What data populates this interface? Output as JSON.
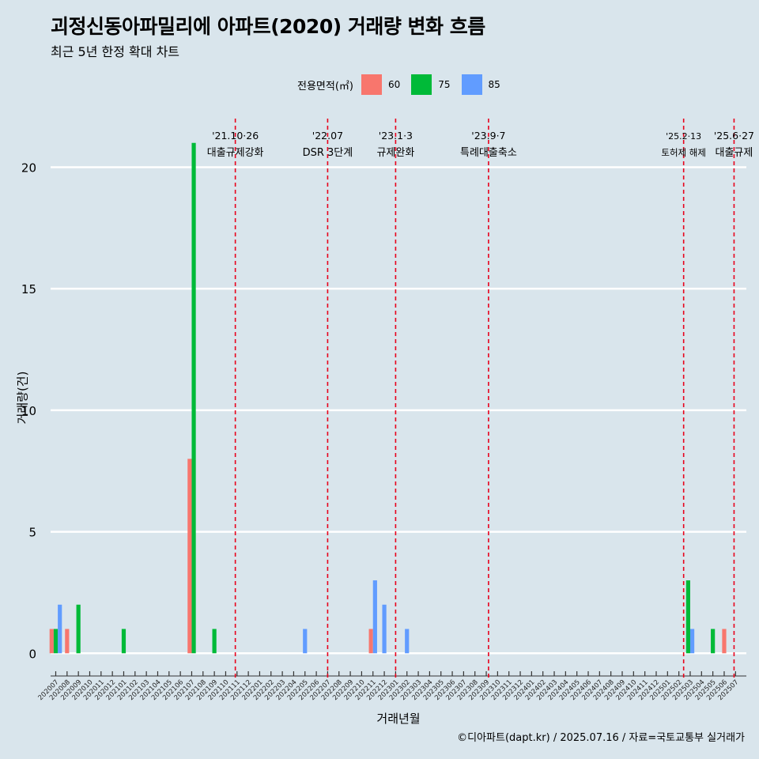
{
  "chart_data": {
    "type": "bar",
    "title": "괴정신동아파밀리에 아파트(2020) 거래량 변화 흐름",
    "subtitle": "최근 5년 한정 확대 차트",
    "xlabel": "거래년월",
    "ylabel": "거래량(건)",
    "caption": "©디아파트(dapt.kr) / 2025.07.16 / 자료=국토교통부 실거래가",
    "legend_title": "전용면적(㎡)",
    "legend_position": "top",
    "ylim": [
      -1,
      22
    ],
    "yticks": [
      0,
      5,
      10,
      15,
      20
    ],
    "grid": true,
    "categories": [
      "202007",
      "202008",
      "202009",
      "202010",
      "202011",
      "202012",
      "202101",
      "202102",
      "202103",
      "202104",
      "202105",
      "202106",
      "202107",
      "202108",
      "202109",
      "202110",
      "202111",
      "202112",
      "202201",
      "202202",
      "202203",
      "202204",
      "202205",
      "202206",
      "202207",
      "202208",
      "202209",
      "202210",
      "202211",
      "202212",
      "202301",
      "202302",
      "202303",
      "202304",
      "202305",
      "202306",
      "202307",
      "202308",
      "202309",
      "202310",
      "202311",
      "202312",
      "202401",
      "202402",
      "202403",
      "202404",
      "202405",
      "202406",
      "202407",
      "202408",
      "202409",
      "202410",
      "202411",
      "202412",
      "202501",
      "202502",
      "202503",
      "202504",
      "202505",
      "202506",
      "202507"
    ],
    "series": [
      {
        "name": "60",
        "color": "#F8766D",
        "values": [
          1,
          1,
          0,
          0,
          0,
          0,
          0,
          0,
          0,
          0,
          0,
          0,
          8,
          0,
          0,
          0,
          0,
          0,
          0,
          0,
          0,
          0,
          0,
          0,
          0,
          0,
          0,
          0,
          1,
          0,
          0,
          0,
          0,
          0,
          0,
          0,
          0,
          0,
          0,
          0,
          0,
          0,
          0,
          0,
          0,
          0,
          0,
          0,
          0,
          0,
          0,
          0,
          0,
          0,
          0,
          0,
          0,
          0,
          0,
          1,
          0
        ]
      },
      {
        "name": "75",
        "color": "#00BA38",
        "values": [
          1,
          0,
          2,
          0,
          0,
          0,
          1,
          0,
          0,
          0,
          0,
          0,
          21,
          0,
          1,
          0,
          0,
          0,
          0,
          0,
          0,
          0,
          0,
          0,
          0,
          0,
          0,
          0,
          0,
          0,
          0,
          0,
          0,
          0,
          0,
          0,
          0,
          0,
          0,
          0,
          0,
          0,
          0,
          0,
          0,
          0,
          0,
          0,
          0,
          0,
          0,
          0,
          0,
          0,
          0,
          0,
          3,
          0,
          1,
          0,
          0
        ]
      },
      {
        "name": "85",
        "color": "#619CFF",
        "values": [
          2,
          0,
          0,
          0,
          0,
          0,
          0,
          0,
          0,
          0,
          0,
          0,
          0,
          0,
          0,
          0,
          0,
          0,
          0,
          0,
          0,
          0,
          1,
          0,
          0,
          0,
          0,
          0,
          3,
          2,
          0,
          1,
          0,
          0,
          0,
          0,
          0,
          0,
          0,
          0,
          0,
          0,
          0,
          0,
          0,
          0,
          0,
          0,
          0,
          0,
          0,
          0,
          0,
          0,
          0,
          0,
          1,
          0,
          0,
          0,
          0
        ]
      }
    ],
    "annotations": [
      {
        "date_label": "'21.10·26",
        "text": "대출규제강화",
        "x": "202110",
        "offset": 0.85
      },
      {
        "date_label": "'22.07",
        "text": "DSR 3단계",
        "x": "202207",
        "offset": 0.0
      },
      {
        "date_label": "'23.1·3",
        "text": "규제완화",
        "x": "202301",
        "offset": 0.0
      },
      {
        "date_label": "'23.9·7",
        "text": "특례대출축소",
        "x": "202309",
        "offset": 0.2
      },
      {
        "date_label": "'25.2·13",
        "text": "토허제 해제",
        "x": "202502",
        "offset": 0.42
      },
      {
        "date_label": "'25.6·27",
        "text": "대출규제",
        "x": "202506",
        "offset": 0.87
      }
    ]
  },
  "colors": {
    "background": "#d9e5ec",
    "grid": "#ffffff",
    "event_line": "#e8001c"
  }
}
